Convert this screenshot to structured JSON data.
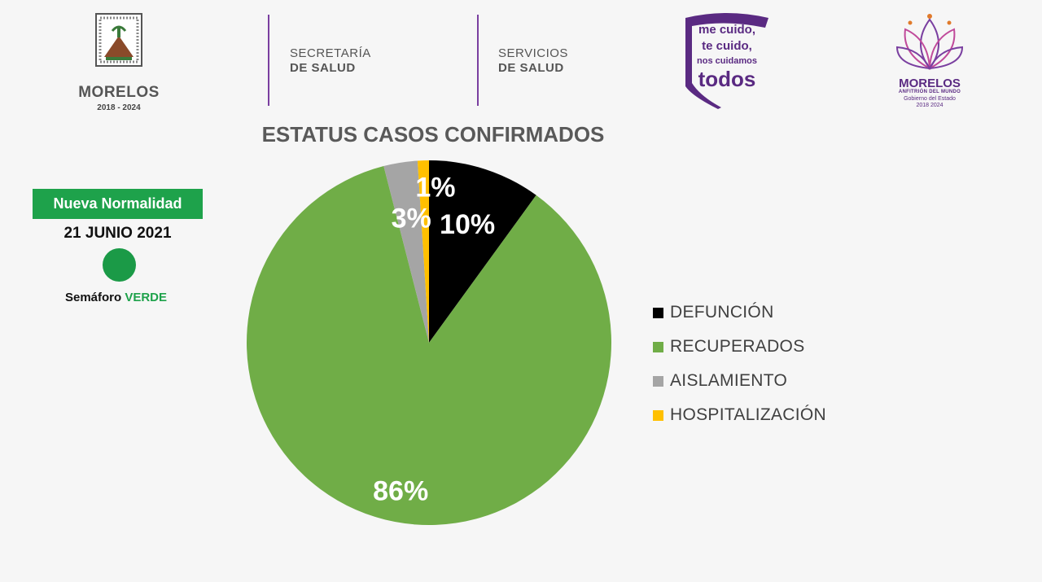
{
  "header": {
    "state_logo": {
      "name": "MORELOS",
      "years": "2018 - 2024"
    },
    "secretaria": {
      "line1": "SECRETARÍA",
      "line2": "DE SALUD"
    },
    "servicios": {
      "line1": "SERVICIOS",
      "line2": "DE SALUD"
    },
    "campaign": {
      "line1": "me cuido,",
      "line2": "te cuido,",
      "line3": "nos cuidamos",
      "line4": "todos"
    },
    "government": {
      "name": "MORELOS",
      "tagline": "ANFITRIÓN DEL MUNDO",
      "subtitle": "Gobierno del Estado",
      "years": "2018 2024"
    }
  },
  "status": {
    "label": "Nueva Normalidad",
    "date": "21 JUNIO 2021",
    "semaforo_prefix": "Semáforo",
    "semaforo_value": "VERDE"
  },
  "colors": {
    "green_badge": "#1ea24b",
    "purple": "#5a2a82"
  },
  "chart_data": {
    "type": "pie",
    "title": "ESTATUS CASOS CONFIRMADOS",
    "start_angle_deg": 0,
    "direction": "clockwise",
    "legend_position": "right",
    "slices": [
      {
        "label": "DEFUNCIÓN",
        "value": 10,
        "display": "10%",
        "color": "#000000"
      },
      {
        "label": "RECUPERADOS",
        "value": 86,
        "display": "86%",
        "color": "#70ad47"
      },
      {
        "label": "AISLAMIENTO",
        "value": 3,
        "display": "3%",
        "color": "#a5a5a5"
      },
      {
        "label": "HOSPITALIZACIÓN",
        "value": 1,
        "display": "1%",
        "color": "#ffc000"
      }
    ]
  }
}
